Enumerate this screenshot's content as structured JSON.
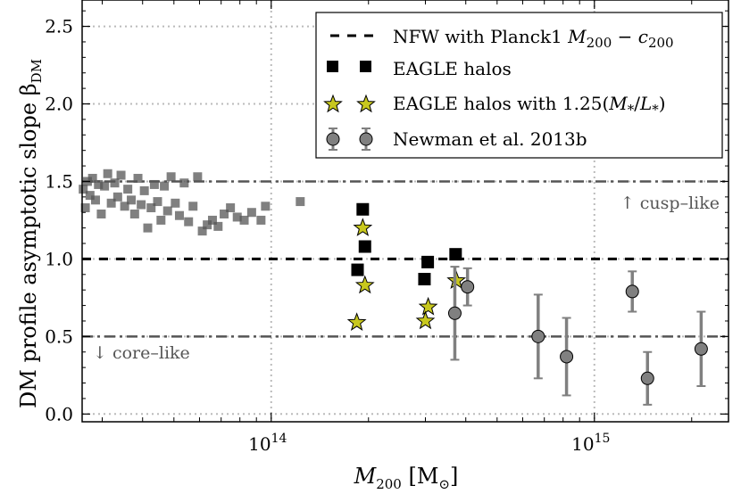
{
  "chart_data": {
    "type": "scatter",
    "xscale": "log",
    "xlim": [
      26000000000000,
      2600000000000000
    ],
    "ylim": [
      -0.05,
      2.67
    ],
    "ylabel": "DM profile asymptotic slope β",
    "ylabel_sub": "DM",
    "xlabel": "M",
    "xlabel_sub": "200",
    "xlabel_unit_open": " [M",
    "xlabel_unit_sub": "⊙",
    "xlabel_unit_close": "]",
    "y_ticks": [
      {
        "value": 0.0,
        "label": "0.0"
      },
      {
        "value": 0.5,
        "label": "0.5"
      },
      {
        "value": 1.0,
        "label": "1.0"
      },
      {
        "value": 1.5,
        "label": "1.5"
      },
      {
        "value": 2.0,
        "label": "2.0"
      },
      {
        "value": 2.5,
        "label": "2.5"
      }
    ],
    "x_ticks": [
      {
        "value": 100000000000000,
        "base": "10",
        "exp": "14"
      },
      {
        "value": 1000000000000000,
        "base": "10",
        "exp": "15"
      }
    ],
    "grid": true,
    "reference_lines": [
      {
        "name": "nfw-line",
        "y": 1.0,
        "style": "dashed",
        "color": "#000000"
      },
      {
        "name": "cusp-threshold-line",
        "y": 1.5,
        "style": "dashdot",
        "color": "#555555"
      },
      {
        "name": "core-threshold-line",
        "y": 0.5,
        "style": "dashdot",
        "color": "#555555"
      }
    ],
    "annotations": {
      "cusp": "↑ cusp–like",
      "core": "↓ core–like"
    },
    "legend": {
      "position": "top-right",
      "entries": [
        {
          "name": "legend-nfw",
          "marker": "dash",
          "text": "NFW with Planck1 M200 − c200"
        },
        {
          "name": "legend-eagle",
          "marker": "square",
          "text": "EAGLE halos"
        },
        {
          "name": "legend-eagle-ml",
          "marker": "star",
          "text": "EAGLE halos with 1.25(M*/L*)"
        },
        {
          "name": "legend-newman",
          "marker": "circle-errorbar",
          "text": "Newman et al. 2013b"
        }
      ]
    },
    "colors": {
      "eagle": "#000000",
      "background": "#555555",
      "star": "#c8c81e",
      "newman": "#808080",
      "grid": "#bbbbbb"
    },
    "series": [
      {
        "name": "Low-mass halos",
        "marker": "square-translucent",
        "points": [
          [
            26200000000000,
            1.45
          ],
          [
            26600000000000,
            1.33
          ],
          [
            27000000000000,
            1.5
          ],
          [
            27500000000000,
            1.41
          ],
          [
            28000000000000,
            1.52
          ],
          [
            28600000000000,
            1.38
          ],
          [
            29200000000000,
            1.48
          ],
          [
            29800000000000,
            1.29
          ],
          [
            30500000000000,
            1.47
          ],
          [
            31200000000000,
            1.55
          ],
          [
            32000000000000,
            1.36
          ],
          [
            32800000000000,
            1.49
          ],
          [
            33500000000000,
            1.4
          ],
          [
            34300000000000,
            1.54
          ],
          [
            35200000000000,
            1.34
          ],
          [
            36000000000000,
            1.45
          ],
          [
            36900000000000,
            1.38
          ],
          [
            37800000000000,
            1.29
          ],
          [
            38700000000000,
            1.52
          ],
          [
            39600000000000,
            1.35
          ],
          [
            40500000000000,
            1.44
          ],
          [
            41500000000000,
            1.2
          ],
          [
            42500000000000,
            1.33
          ],
          [
            43500000000000,
            1.48
          ],
          [
            44500000000000,
            1.37
          ],
          [
            45600000000000,
            1.25
          ],
          [
            46700000000000,
            1.47
          ],
          [
            47800000000000,
            1.31
          ],
          [
            49000000000000,
            1.53
          ],
          [
            50500000000000,
            1.36
          ],
          [
            52000000000000,
            1.28
          ],
          [
            53800000000000,
            1.49
          ],
          [
            55500000000000,
            1.24
          ],
          [
            57300000000000,
            1.34
          ],
          [
            59200000000000,
            1.53
          ],
          [
            61200000000000,
            1.18
          ],
          [
            63400000000000,
            1.22
          ],
          [
            65800000000000,
            1.25
          ],
          [
            68500000000000,
            1.21
          ],
          [
            71500000000000,
            1.29
          ],
          [
            74800000000000,
            1.33
          ],
          [
            78500000000000,
            1.27
          ],
          [
            82500000000000,
            1.25
          ],
          [
            87000000000000,
            1.3
          ],
          [
            93000000000000,
            1.25
          ],
          [
            96000000000000,
            1.34
          ],
          [
            123000000000000,
            1.37
          ]
        ]
      },
      {
        "name": "EAGLE halos",
        "marker": "square",
        "points": [
          [
            192000000000000,
            1.32
          ],
          [
            195000000000000,
            1.08
          ],
          [
            185000000000000,
            0.93
          ],
          [
            305000000000000,
            0.98
          ],
          [
            298000000000000,
            0.87
          ],
          [
            372000000000000,
            1.03
          ]
        ]
      },
      {
        "name": "EAGLE halos with 1.25(M*/L*)",
        "marker": "star",
        "points": [
          [
            192000000000000,
            1.2
          ],
          [
            195000000000000,
            0.83
          ],
          [
            184000000000000,
            0.59
          ],
          [
            306000000000000,
            0.69
          ],
          [
            300000000000000,
            0.6
          ],
          [
            374000000000000,
            0.86
          ]
        ]
      },
      {
        "name": "Newman et al. 2013b",
        "marker": "circle-errorbar",
        "points": [
          {
            "x": 370000000000000,
            "y": 0.65,
            "yerr": 0.3
          },
          {
            "x": 405000000000000,
            "y": 0.82,
            "yerr": 0.12
          },
          {
            "x": 670000000000000,
            "y": 0.5,
            "yerr": 0.27
          },
          {
            "x": 820000000000000,
            "y": 0.37,
            "yerr": 0.25
          },
          {
            "x": 1310000000000000,
            "y": 0.79,
            "yerr": 0.13
          },
          {
            "x": 1460000000000000,
            "y": 0.23,
            "yerr": 0.17
          },
          {
            "x": 2140000000000000,
            "y": 0.42,
            "yerr": 0.24
          }
        ]
      }
    ]
  }
}
